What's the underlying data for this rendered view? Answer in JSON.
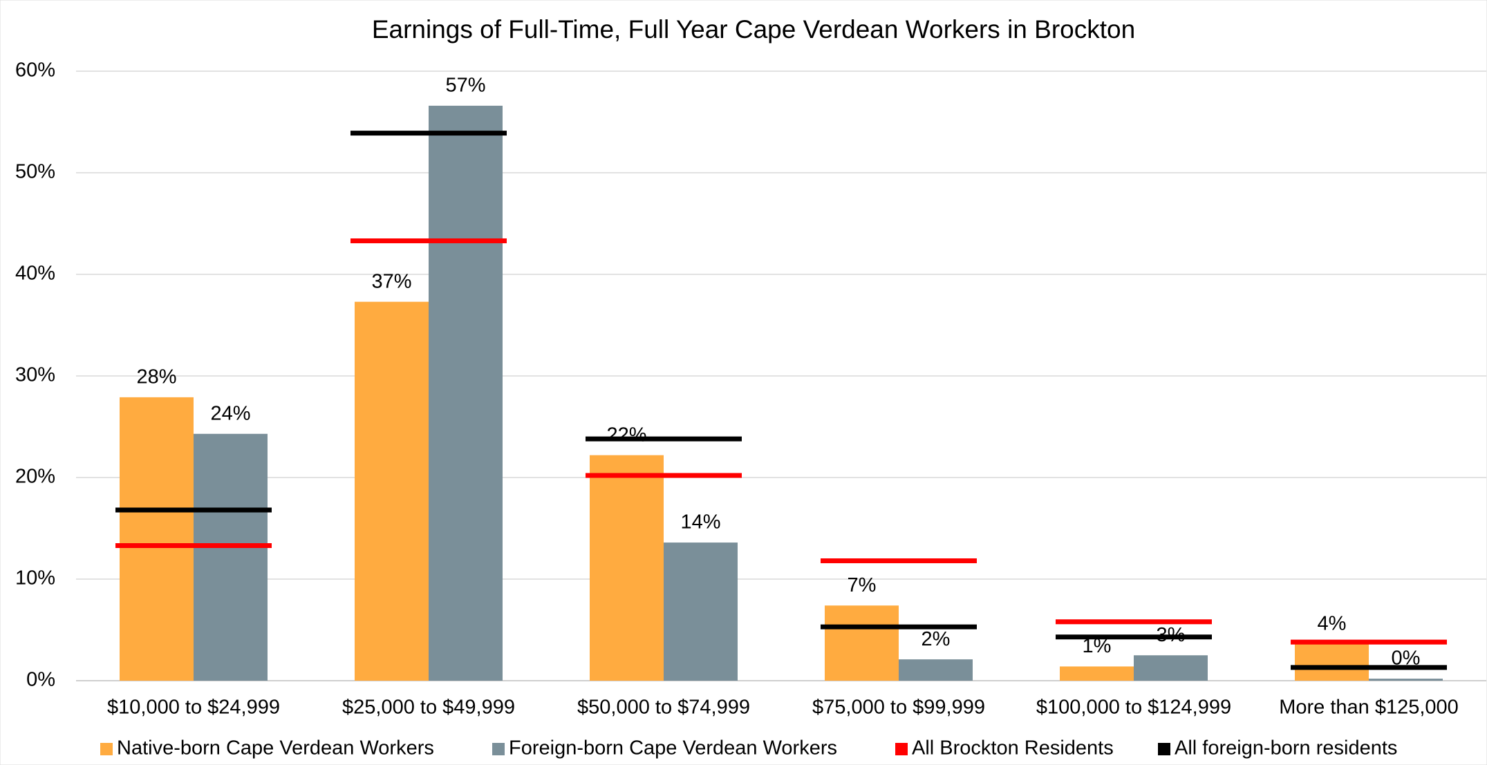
{
  "chart_data": {
    "type": "bar",
    "title": "Earnings of Full-Time, Full Year Cape Verdean Workers in Brockton",
    "categories": [
      "$10,000 to $24,999",
      "$25,000 to $49,999",
      "$50,000 to $74,999",
      "$75,000 to $99,999",
      "$100,000 to $124,999",
      "More than $125,000"
    ],
    "series": [
      {
        "name": "Native-born Cape Verdean Workers",
        "color": "#ffab40",
        "kind": "bar",
        "values": [
          27.9,
          37.3,
          22.2,
          7.4,
          1.4,
          3.6
        ],
        "value_labels": [
          "28%",
          "37%",
          "22%",
          "7%",
          "1%",
          "4%"
        ]
      },
      {
        "name": "Foreign-born Cape Verdean Workers",
        "color": "#7a8f99",
        "kind": "bar",
        "values": [
          24.3,
          56.6,
          13.6,
          2.1,
          2.5,
          0.2
        ],
        "value_labels": [
          "24%",
          "57%",
          "14%",
          "2%",
          "3%",
          "0%"
        ]
      },
      {
        "name": "All Brockton Residents",
        "color": "#ff0000",
        "kind": "marker",
        "values": [
          13.3,
          43.3,
          20.2,
          11.8,
          5.8,
          3.8
        ]
      },
      {
        "name": "All foreign-born residents",
        "color": "#000000",
        "kind": "marker",
        "values": [
          16.8,
          53.9,
          23.8,
          5.3,
          4.3,
          1.3
        ]
      }
    ],
    "ylim": [
      0,
      60
    ],
    "yticks": [
      {
        "value": 0,
        "label": "0%"
      },
      {
        "value": 10,
        "label": "10%"
      },
      {
        "value": 20,
        "label": "20%"
      },
      {
        "value": 30,
        "label": "30%"
      },
      {
        "value": 40,
        "label": "40%"
      },
      {
        "value": 50,
        "label": "50%"
      },
      {
        "value": 60,
        "label": "60%"
      }
    ],
    "grid": true,
    "legend": "bottom"
  }
}
